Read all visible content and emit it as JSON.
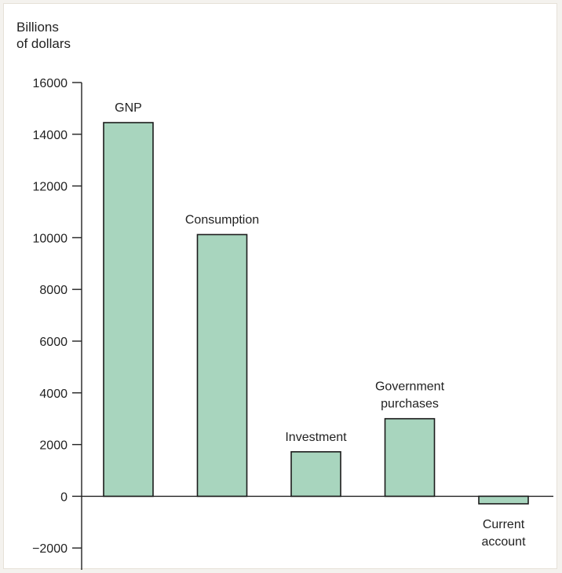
{
  "chart_data": {
    "type": "bar",
    "ylabel": [
      "Billions",
      "of dollars"
    ],
    "ylim": [
      -2500,
      16000
    ],
    "yticks": [
      16000,
      14000,
      12000,
      10000,
      8000,
      6000,
      4000,
      2000,
      0,
      -2000
    ],
    "ytick_labels": [
      "16000",
      "14000",
      "12000",
      "10000",
      "8000",
      "6000",
      "4000",
      "2000",
      "0",
      "−2000"
    ],
    "categories": [
      "GNP",
      "Consumption",
      "Investment",
      "Government purchases",
      "Current account"
    ],
    "category_labels": [
      [
        "GNP"
      ],
      [
        "Consumption"
      ],
      [
        "Investment"
      ],
      [
        "Government",
        "purchases"
      ],
      [
        "Current",
        "account"
      ]
    ],
    "values": [
      14450,
      10120,
      1720,
      3000,
      -290
    ],
    "grid": false,
    "bar_color": "#a8d5be",
    "bar_edge_color": "#1c1c1c"
  }
}
